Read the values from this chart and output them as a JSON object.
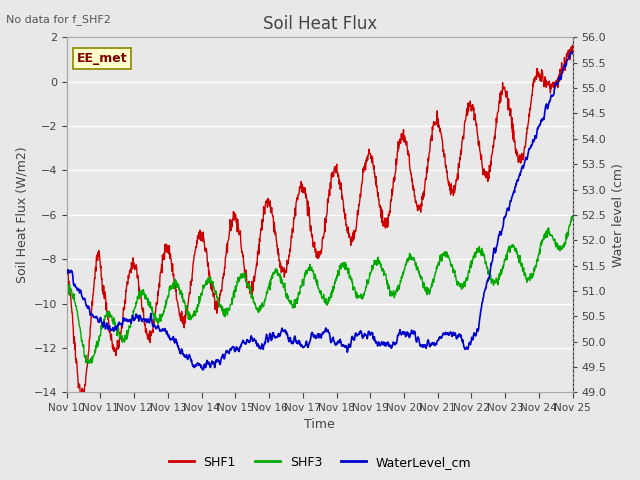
{
  "title": "Soil Heat Flux",
  "top_left_text": "No data for f_SHF2",
  "annotation_text": "EE_met",
  "xlabel": "Time",
  "ylabel_left": "Soil Heat Flux (W/m2)",
  "ylabel_right": "Water level (cm)",
  "ylim_left": [
    -14,
    2
  ],
  "ylim_right": [
    49.0,
    56.0
  ],
  "yticks_left": [
    -14,
    -12,
    -10,
    -8,
    -6,
    -4,
    -2,
    0,
    2
  ],
  "yticks_right": [
    49.0,
    49.5,
    50.0,
    50.5,
    51.0,
    51.5,
    52.0,
    52.5,
    53.0,
    53.5,
    54.0,
    54.5,
    55.0,
    55.5,
    56.0
  ],
  "xtick_labels": [
    "Nov 10",
    "Nov 11",
    "Nov 12",
    "Nov 13",
    "Nov 14",
    "Nov 15",
    "Nov 16",
    "Nov 17",
    "Nov 18",
    "Nov 19",
    "Nov 20",
    "Nov 21",
    "Nov 22",
    "Nov 23",
    "Nov 24",
    "Nov 25"
  ],
  "colors": {
    "SHF1": "#cc0000",
    "SHF3": "#00aa00",
    "WaterLevel": "#0000cc",
    "background": "#e8e8e8",
    "annotation_bg": "#ffffcc",
    "annotation_border": "#888800"
  }
}
